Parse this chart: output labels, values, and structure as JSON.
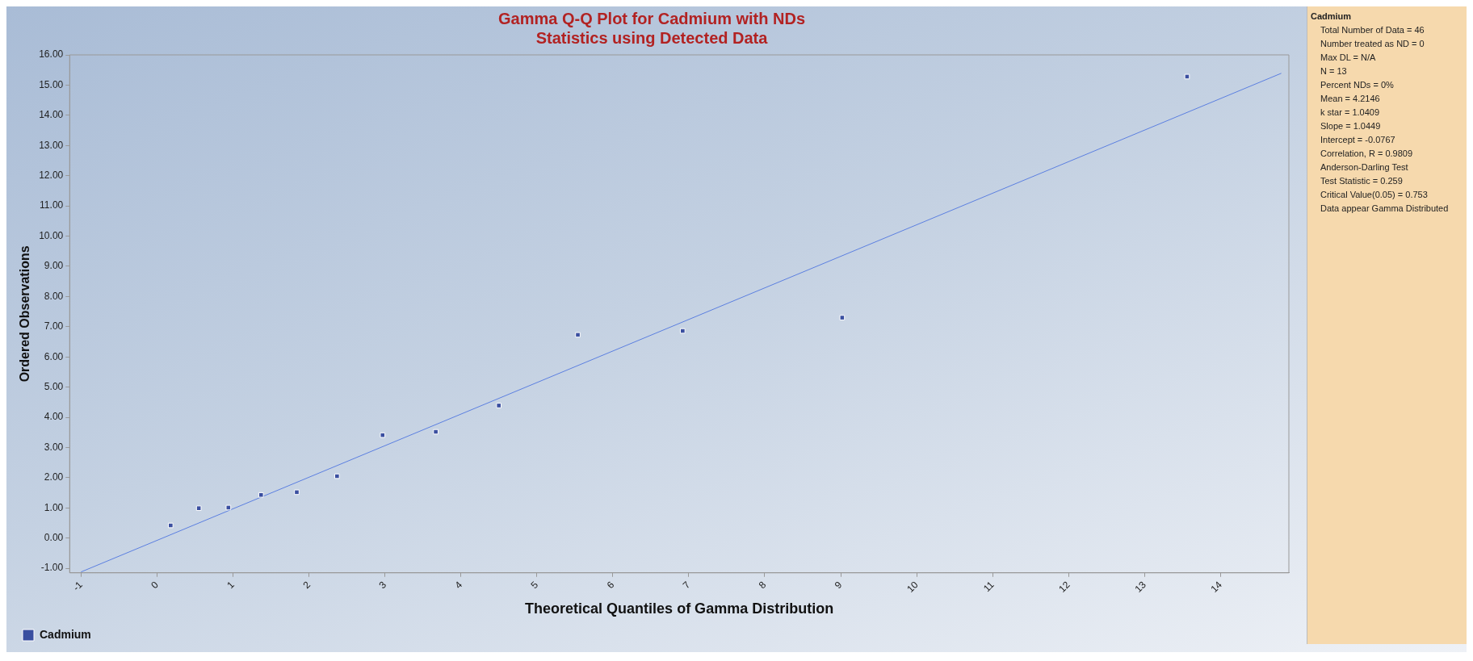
{
  "chart_data": {
    "type": "scatter",
    "title": "Gamma Q-Q Plot for Cadmium with NDs",
    "subtitle": "Statistics using Detected Data",
    "xlabel": "Theoretical Quantiles of Gamma Distribution",
    "ylabel": "Ordered Observations",
    "xlim": [
      -1.15,
      14.9
    ],
    "xticks": [
      -1,
      0,
      1,
      2,
      3,
      4,
      5,
      6,
      7,
      8,
      9,
      10,
      11,
      12,
      13,
      14
    ],
    "ylim": [
      -1.15,
      16
    ],
    "yticks": [
      {
        "value": -1,
        "label": "-1.00"
      },
      {
        "value": 0,
        "label": "0.00"
      },
      {
        "value": 1,
        "label": "1.00"
      },
      {
        "value": 2,
        "label": "2.00"
      },
      {
        "value": 3,
        "label": "3.00"
      },
      {
        "value": 4,
        "label": "4.00"
      },
      {
        "value": 5,
        "label": "5.00"
      },
      {
        "value": 6,
        "label": "6.00"
      },
      {
        "value": 7,
        "label": "7.00"
      },
      {
        "value": 8,
        "label": "8.00"
      },
      {
        "value": 9,
        "label": "9.00"
      },
      {
        "value": 10,
        "label": "10.00"
      },
      {
        "value": 11,
        "label": "11.00"
      },
      {
        "value": 12,
        "label": "12.00"
      },
      {
        "value": 13,
        "label": "13.00"
      },
      {
        "value": 14,
        "label": "14.00"
      },
      {
        "value": 15,
        "label": "15.00"
      },
      {
        "value": 16,
        "label": "16.00"
      }
    ],
    "series": [
      {
        "name": "Cadmium",
        "color": "#3a4fa0",
        "marker": "square",
        "x": [
          0.18,
          0.55,
          0.94,
          1.37,
          1.84,
          2.37,
          2.97,
          3.67,
          4.5,
          5.54,
          6.92,
          9.02,
          13.56
        ],
        "values": [
          0.42,
          0.99,
          1.01,
          1.43,
          1.52,
          2.05,
          3.41,
          3.52,
          4.39,
          6.73,
          6.86,
          7.3,
          15.28
        ]
      },
      {
        "type": "line",
        "color": "#5b7fe0",
        "marker": "none",
        "line_style": "solid",
        "x": [
          -1,
          14.8
        ],
        "values": [
          -1.12,
          15.39
        ]
      }
    ],
    "grid": false,
    "legend": "bottom left",
    "annotations": [
      "Cadmium",
      "Total Number of Data = 46",
      "Number treated as ND = 0",
      "Max DL = N/A",
      "N = 13",
      "Percent NDs = 0%",
      "Mean = 4.2146",
      "k star = 1.0409",
      "Slope = 1.0449",
      "Intercept = -0.0767",
      "Correlation, R = 0.9809",
      "Anderson-Darling Test",
      "Test Statistic = 0.259",
      "Critical Value(0.05) = 0.753",
      "Data appear Gamma Distributed"
    ]
  }
}
